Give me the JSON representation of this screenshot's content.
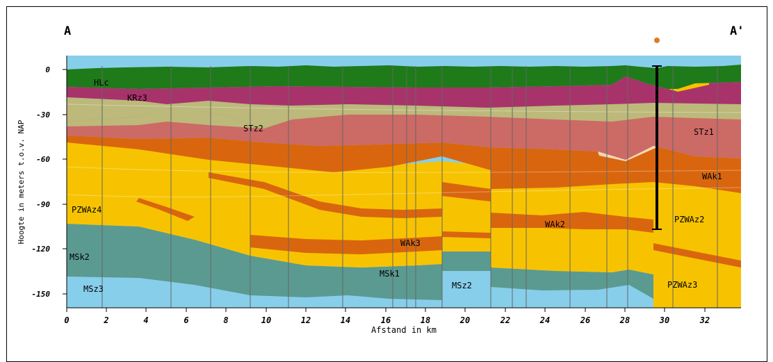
{
  "section": {
    "start_label": "A",
    "end_label": "A'",
    "y_axis_label": "Hoogte in meters t.o.v. NAP",
    "x_axis_label": "Afstand in km",
    "y_ticks": [
      "0",
      "-30",
      "-60",
      "-90",
      "-120",
      "-150"
    ],
    "x_ticks": [
      "0",
      "2",
      "4",
      "6",
      "8",
      "10",
      "12",
      "14",
      "16",
      "18",
      "20",
      "22",
      "24",
      "26",
      "28",
      "30",
      "32"
    ]
  },
  "units": [
    {
      "code": "HLc",
      "color": "#1f7a1a"
    },
    {
      "code": "KRz3",
      "color": "#a8336a"
    },
    {
      "code": "STz2",
      "color": "#cc6a66"
    },
    {
      "code": "STz1",
      "color": "#cc6a66"
    },
    {
      "code": "WAk1",
      "color": "#d9660e"
    },
    {
      "code": "WAk2",
      "color": "#d9660e"
    },
    {
      "code": "WAk3",
      "color": "#d9660e"
    },
    {
      "code": "PZWAz4",
      "color": "#f7c300"
    },
    {
      "code": "PZWAz2",
      "color": "#f7c300"
    },
    {
      "code": "PZWAz3",
      "color": "#f7c300"
    },
    {
      "code": "MSk2",
      "color": "#5b9a90"
    },
    {
      "code": "MSk1",
      "color": "#5b9a90"
    },
    {
      "code": "MSz3",
      "color": "#87ceeb"
    },
    {
      "code": "MSz2",
      "color": "#87ceeb"
    }
  ],
  "colors": {
    "khaki": "#bcb97a",
    "pale_sand": "#f5d9b4",
    "borehole": "#000000",
    "marker": "#e07b24"
  }
}
